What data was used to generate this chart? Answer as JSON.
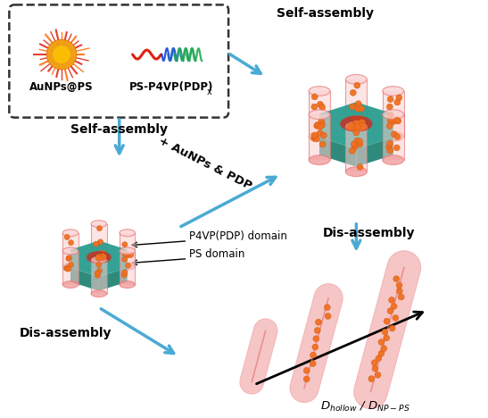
{
  "bg_color": "#ffffff",
  "teal_color": "#2a9d8f",
  "teal_dark": "#1a7060",
  "teal_side": "#1d8070",
  "pink_color": "#f09090",
  "pink_light": "#fad0d0",
  "pink_border": "#e87878",
  "orange_color": "#f07020",
  "orange_dark": "#cc5510",
  "blue_arrow": "#4aaad4",
  "red_color": "#dd2010",
  "gold_color": "#f0a010",
  "gold_dark": "#e06000",
  "label_color": "#111111",
  "dashed_box_color": "#444444",
  "hole_color": "#c03828",
  "hole_inner": "#a02820",
  "texts": {
    "aunps_label": "AuNPs@PS",
    "ps_label": "PS-P4VP(PDP)",
    "ps_subscript": "x",
    "self_assembly_top": "Self-assembly",
    "self_assembly_left": "Self-assembly",
    "dis_assembly_right": "Dis-assembly",
    "dis_assembly_bottom": "Dis-assembly",
    "p4vp_domain": "P4VP(PDP) domain",
    "ps_domain": "PS domain",
    "aunps_pdp": "+ AuNPs & PDP",
    "d_label": "$D_{hollow}$ / $D_{NP-PS}$"
  }
}
